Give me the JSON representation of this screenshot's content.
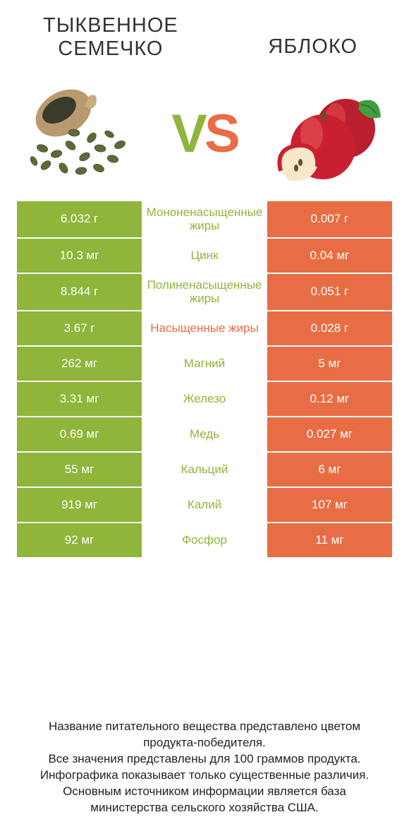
{
  "colors": {
    "green": "#8fb53a",
    "orange": "#e96d44",
    "text": "#333333"
  },
  "header": {
    "left_title": "ТЫКВЕННОЕ СЕМЕЧКО",
    "right_title": "ЯБЛОКО",
    "vs_v": "V",
    "vs_s": "S"
  },
  "rows": [
    {
      "left": "6.032 г",
      "mid": "Мононенасыщенные жиры",
      "right": "0.007 г",
      "mid_color": "#8fb53a"
    },
    {
      "left": "10.3 мг",
      "mid": "Цинк",
      "right": "0.04 мг",
      "mid_color": "#8fb53a"
    },
    {
      "left": "8.844 г",
      "mid": "Полиненасыщенные жиры",
      "right": "0.051 г",
      "mid_color": "#8fb53a"
    },
    {
      "left": "3.67 г",
      "mid": "Насыщенные жиры",
      "right": "0.028 г",
      "mid_color": "#e96d44"
    },
    {
      "left": "262 мг",
      "mid": "Магний",
      "right": "5 мг",
      "mid_color": "#8fb53a"
    },
    {
      "left": "3.31 мг",
      "mid": "Железо",
      "right": "0.12 мг",
      "mid_color": "#8fb53a"
    },
    {
      "left": "0.69 мг",
      "mid": "Медь",
      "right": "0.027 мг",
      "mid_color": "#8fb53a"
    },
    {
      "left": "55 мг",
      "mid": "Кальций",
      "right": "6 мг",
      "mid_color": "#8fb53a"
    },
    {
      "left": "919 мг",
      "mid": "Калий",
      "right": "107 мг",
      "mid_color": "#8fb53a"
    },
    {
      "left": "92 мг",
      "mid": "Фосфор",
      "right": "11 мг",
      "mid_color": "#8fb53a"
    }
  ],
  "left_bg": "#8fb53a",
  "right_bg": "#e96d44",
  "footer": {
    "l1": "Название питательного вещества представлено цветом продукта-победителя.",
    "l2": "Все значения представлены для 100 граммов продукта.",
    "l3": "Инфографика показывает только существенные различия.",
    "l4": "Основным источником информации является база министерства сельского хозяйства США."
  }
}
